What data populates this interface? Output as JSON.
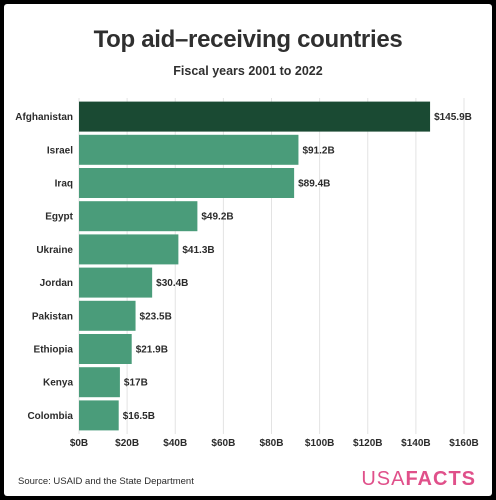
{
  "colors": {
    "highlight_bar": "#1a4a33",
    "bar": "#4a9c7a",
    "grid": "#e3e3e3",
    "logo": "#e0508a"
  },
  "chart_data": {
    "type": "bar",
    "orientation": "horizontal",
    "title": "Top aid–receiving countries",
    "subtitle": "Fiscal years 2001 to 2022",
    "categories": [
      "Afghanistan",
      "Israel",
      "Iraq",
      "Egypt",
      "Ukraine",
      "Jordan",
      "Pakistan",
      "Ethiopia",
      "Kenya",
      "Colombia"
    ],
    "values": [
      145.9,
      91.2,
      89.4,
      49.2,
      41.3,
      30.4,
      23.5,
      21.9,
      17,
      16.5
    ],
    "value_labels": [
      "$145.9B",
      "$91.2B",
      "$89.4B",
      "$49.2B",
      "$41.3B",
      "$30.4B",
      "$23.5B",
      "$21.9B",
      "$17B",
      "$16.5B"
    ],
    "xlim": [
      0,
      160
    ],
    "x_ticks": [
      0,
      20,
      40,
      60,
      80,
      100,
      120,
      140,
      160
    ],
    "x_tick_labels": [
      "$0B",
      "$20B",
      "$40B",
      "$60B",
      "$80B",
      "$100B",
      "$120B",
      "$140B",
      "$160B"
    ],
    "grid": true,
    "highlight_index": 0
  },
  "footer": {
    "source": "Source: USAID and the State Department",
    "logo_usa": "USA",
    "logo_facts": "FACTS"
  }
}
